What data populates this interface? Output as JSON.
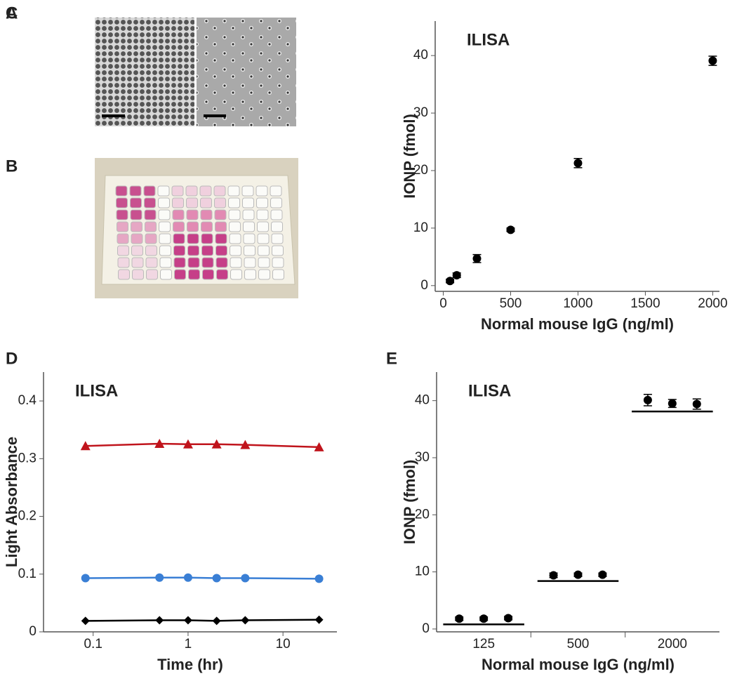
{
  "images": [
    {
      "panel": "A"
    },
    {
      "panel": "B"
    }
  ],
  "chart_data": [
    {
      "type": "scatter",
      "panel": "C",
      "annotation": "ILISA",
      "x_label": "Normal mouse IgG (ng/ml)",
      "y_label": "IONP (fmol)",
      "x": [
        50,
        100,
        250,
        500,
        1000,
        2000
      ],
      "series": [
        {
          "color": "#000000",
          "values": [
            0.8,
            1.8,
            4.7,
            9.7,
            21.3,
            39.1
          ],
          "errors": [
            0.3,
            0.4,
            0.7,
            0.3,
            0.8,
            0.8
          ]
        }
      ],
      "xlim": [
        -60,
        2050
      ],
      "xticks": [
        0,
        500,
        1000,
        1500,
        2000
      ],
      "ylim": [
        -1,
        46
      ],
      "yticks": [
        0,
        10,
        20,
        30,
        40
      ]
    },
    {
      "type": "line",
      "panel": "D",
      "annotation": "ILISA",
      "x_label": "Time (hr)",
      "y_label": "Light Absorbance",
      "log_x": true,
      "x": [
        0.083,
        0.5,
        1,
        2,
        4,
        24
      ],
      "series": [
        {
          "color": "#c0141c",
          "marker": "triangle",
          "values": [
            0.322,
            0.326,
            0.325,
            0.325,
            0.324,
            0.32
          ]
        },
        {
          "color": "#3a7fd5",
          "marker": "circle",
          "values": [
            0.093,
            0.094,
            0.094,
            0.093,
            0.093,
            0.092
          ]
        },
        {
          "color": "#000000",
          "marker": "diamond",
          "values": [
            0.019,
            0.02,
            0.02,
            0.019,
            0.02,
            0.021
          ]
        }
      ],
      "xlim": [
        0.03,
        37
      ],
      "xticks": [
        0.1,
        1,
        10
      ],
      "ylim": [
        0,
        0.45
      ],
      "yticks": [
        0,
        0.1,
        0.2,
        0.3,
        0.4
      ]
    },
    {
      "type": "strip",
      "panel": "E",
      "annotation": "ILISA",
      "x_label": "Normal mouse IgG (ng/ml)",
      "y_label": "IONP (fmol)",
      "categories": [
        "125",
        "500",
        "2000"
      ],
      "series": [
        {
          "color": "#000000",
          "values": [
            1.8,
            9.4,
            40.1
          ],
          "errors": [
            0.3,
            0.4,
            1.0
          ]
        },
        {
          "color": "#000000",
          "values": [
            1.8,
            9.5,
            39.5
          ],
          "errors": [
            0.3,
            0.3,
            0.7
          ]
        },
        {
          "color": "#000000",
          "values": [
            1.9,
            9.5,
            39.4
          ],
          "errors": [
            0.3,
            0.3,
            0.9
          ]
        }
      ],
      "reference_lines": [
        0.8,
        8.4,
        38.1
      ],
      "ylim": [
        -0.5,
        45
      ],
      "yticks": [
        0,
        10,
        20,
        30,
        40
      ]
    }
  ]
}
